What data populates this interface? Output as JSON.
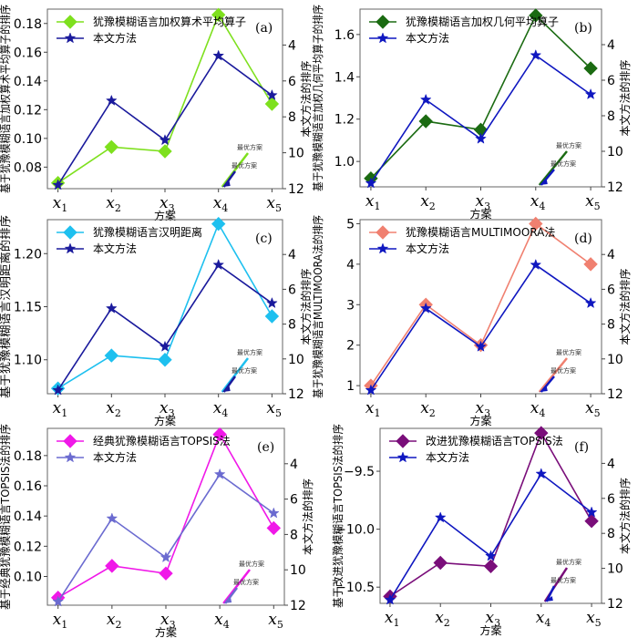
{
  "chart_data": [
    {
      "type": "line",
      "panel": "(a)",
      "categories": [
        "x1",
        "x2",
        "x3",
        "x4",
        "x5"
      ],
      "xlabel": "方案",
      "ylabel": "基于犹豫模糊语言加权算术平均算子的排序",
      "y2label": "本文方法的排序",
      "ylim": [
        0.065,
        0.19
      ],
      "yticks": [
        0.08,
        0.1,
        0.12,
        0.14,
        0.16,
        0.18
      ],
      "ytick_labels": [
        "0.08",
        "0.10",
        "0.12",
        "0.14",
        "0.16",
        "0.18"
      ],
      "y2lim": [
        12,
        2
      ],
      "y2ticks": [
        4,
        6,
        8,
        10,
        12
      ],
      "series": [
        {
          "name": "犹豫模糊语言加权算术平均算子",
          "axis": "left",
          "marker": "diamond",
          "color": "#7ee01e",
          "values": [
            0.069,
            0.094,
            0.091,
            0.186,
            0.124
          ]
        },
        {
          "name": "本文方法",
          "axis": "right",
          "marker": "star",
          "color": "#1a1a9c",
          "values": [
            11.8,
            7.1,
            9.3,
            4.6,
            6.8
          ]
        }
      ],
      "annotations": [
        {
          "text": "最优方案",
          "series": 0,
          "target": "x4"
        },
        {
          "text": "最优方案",
          "series": 1,
          "target": "x4"
        }
      ],
      "legend": "top-left"
    },
    {
      "type": "line",
      "panel": "(b)",
      "categories": [
        "x1",
        "x2",
        "x3",
        "x4",
        "x5"
      ],
      "xlabel": "方案",
      "ylabel": "基于犹豫模糊语言加权几何平均算子的排序",
      "y2label": "本文方法的排序",
      "ylim": [
        0.88,
        1.72
      ],
      "yticks": [
        1.0,
        1.2,
        1.4,
        1.6
      ],
      "ytick_labels": [
        "1.0",
        "1.2",
        "1.4",
        "1.6"
      ],
      "y2lim": [
        12,
        2
      ],
      "y2ticks": [
        4,
        6,
        8,
        10,
        12
      ],
      "series": [
        {
          "name": "犹豫模糊语言加权几何平均算子",
          "axis": "left",
          "marker": "diamond",
          "color": "#1b6b12",
          "values": [
            0.92,
            1.19,
            1.15,
            1.69,
            1.44
          ]
        },
        {
          "name": "本文方法",
          "axis": "right",
          "marker": "star",
          "color": "#0f17c0",
          "values": [
            11.8,
            7.1,
            9.3,
            4.6,
            6.8
          ]
        }
      ],
      "annotations": [
        {
          "text": "最优方案",
          "series": 0,
          "target": "x4"
        },
        {
          "text": "最优方案",
          "series": 1,
          "target": "x4"
        }
      ],
      "legend": "top-left"
    },
    {
      "type": "line",
      "panel": "(c)",
      "categories": [
        "x1",
        "x2",
        "x3",
        "x4",
        "x5"
      ],
      "xlabel": "方案",
      "ylabel": "基于犹豫模糊语言汉明距离的排序",
      "y2label": "本文方法的排序",
      "ylim": [
        1.068,
        1.232
      ],
      "yticks": [
        1.1,
        1.15,
        1.2
      ],
      "ytick_labels": [
        "1.10",
        "1.15",
        "1.20"
      ],
      "y2lim": [
        12,
        2
      ],
      "y2ticks": [
        4,
        6,
        8,
        10,
        12
      ],
      "series": [
        {
          "name": "犹豫模糊语言汉明距离",
          "axis": "left",
          "marker": "diamond",
          "color": "#1ec0ef",
          "values": [
            1.073,
            1.104,
            1.1,
            1.228,
            1.141
          ]
        },
        {
          "name": "本文方法",
          "axis": "right",
          "marker": "star",
          "color": "#1a1a9c",
          "values": [
            11.8,
            7.1,
            9.3,
            4.6,
            6.8
          ]
        }
      ],
      "annotations": [
        {
          "text": "最优方案",
          "series": 0,
          "target": "x4"
        },
        {
          "text": "最优方案",
          "series": 1,
          "target": "x4"
        }
      ],
      "legend": "top-left"
    },
    {
      "type": "line",
      "panel": "(d)",
      "categories": [
        "x1",
        "x2",
        "x3",
        "x4",
        "x5"
      ],
      "xlabel": "方案",
      "ylabel": "基于犹豫模糊语言MULTIMOORA法的排序",
      "y2label": "本文方法的排序",
      "ylim": [
        0.8,
        5.1
      ],
      "yticks": [
        1,
        2,
        3,
        4,
        5
      ],
      "ytick_labels": [
        "1",
        "2",
        "3",
        "4",
        "5"
      ],
      "y2lim": [
        12,
        2
      ],
      "y2ticks": [
        4,
        6,
        8,
        10,
        12
      ],
      "series": [
        {
          "name": "犹豫模糊语言MULTIMOORA法",
          "axis": "left",
          "marker": "diamond",
          "color": "#f08070",
          "values": [
            1,
            3,
            2,
            5,
            4
          ]
        },
        {
          "name": "本文方法",
          "axis": "right",
          "marker": "star",
          "color": "#0f17c0",
          "values": [
            11.8,
            7.1,
            9.3,
            4.6,
            6.8
          ]
        }
      ],
      "annotations": [
        {
          "text": "最优方案",
          "series": 0,
          "target": "x4"
        },
        {
          "text": "最优方案",
          "series": 1,
          "target": "x4"
        }
      ],
      "legend": "top-left"
    },
    {
      "type": "line",
      "panel": "(e)",
      "categories": [
        "x1",
        "x2",
        "x3",
        "x4",
        "x5"
      ],
      "xlabel": "方案",
      "ylabel": "基于经典犹豫模糊语言TOPSIS法的排序",
      "y2label": "本文方法的排序",
      "ylim": [
        0.081,
        0.198
      ],
      "yticks": [
        0.1,
        0.12,
        0.14,
        0.16,
        0.18
      ],
      "ytick_labels": [
        "0.10",
        "0.12",
        "0.14",
        "0.16",
        "0.18"
      ],
      "y2lim": [
        12,
        2
      ],
      "y2ticks": [
        4,
        6,
        8,
        10,
        12
      ],
      "series": [
        {
          "name": "经典犹豫模糊语言TOPSIS法",
          "axis": "left",
          "marker": "diamond",
          "color": "#f018e8",
          "values": [
            0.086,
            0.107,
            0.102,
            0.194,
            0.132
          ]
        },
        {
          "name": "本文方法",
          "axis": "right",
          "marker": "star",
          "color": "#6b6bd0",
          "values": [
            11.8,
            7.1,
            9.3,
            4.6,
            6.8
          ]
        }
      ],
      "annotations": [
        {
          "text": "最优方案",
          "series": 0,
          "target": "x4"
        },
        {
          "text": "最优方案",
          "series": 1,
          "target": "x4"
        }
      ],
      "legend": "top-left"
    },
    {
      "type": "line",
      "panel": "(f)",
      "categories": [
        "x1",
        "x2",
        "x3",
        "x4",
        "x5"
      ],
      "xlabel": "方案",
      "ylabel": "基于改进犹豫模糊语言TOPSIS法的排序",
      "y2label": "本文方法的排序",
      "ylim": [
        -10.64,
        -9.13
      ],
      "yticks": [
        -10.5,
        -10.0,
        -9.5
      ],
      "ytick_labels": [
        "−10.5",
        "−10.0",
        "−9.5"
      ],
      "y2lim": [
        12,
        2
      ],
      "y2ticks": [
        4,
        6,
        8,
        10,
        12
      ],
      "series": [
        {
          "name": "改进犹豫模糊语言TOPSIS法",
          "axis": "left",
          "marker": "diamond",
          "color": "#7a0e7a",
          "values": [
            -10.58,
            -10.29,
            -10.32,
            -9.17,
            -9.93
          ]
        },
        {
          "name": "本文方法",
          "axis": "right",
          "marker": "star",
          "color": "#0f17c0",
          "values": [
            11.8,
            7.1,
            9.3,
            4.6,
            6.8
          ]
        }
      ],
      "annotations": [
        {
          "text": "最优方案",
          "series": 0,
          "target": "x4"
        },
        {
          "text": "最优方案",
          "series": 1,
          "target": "x4"
        }
      ],
      "legend": "top-left"
    }
  ]
}
